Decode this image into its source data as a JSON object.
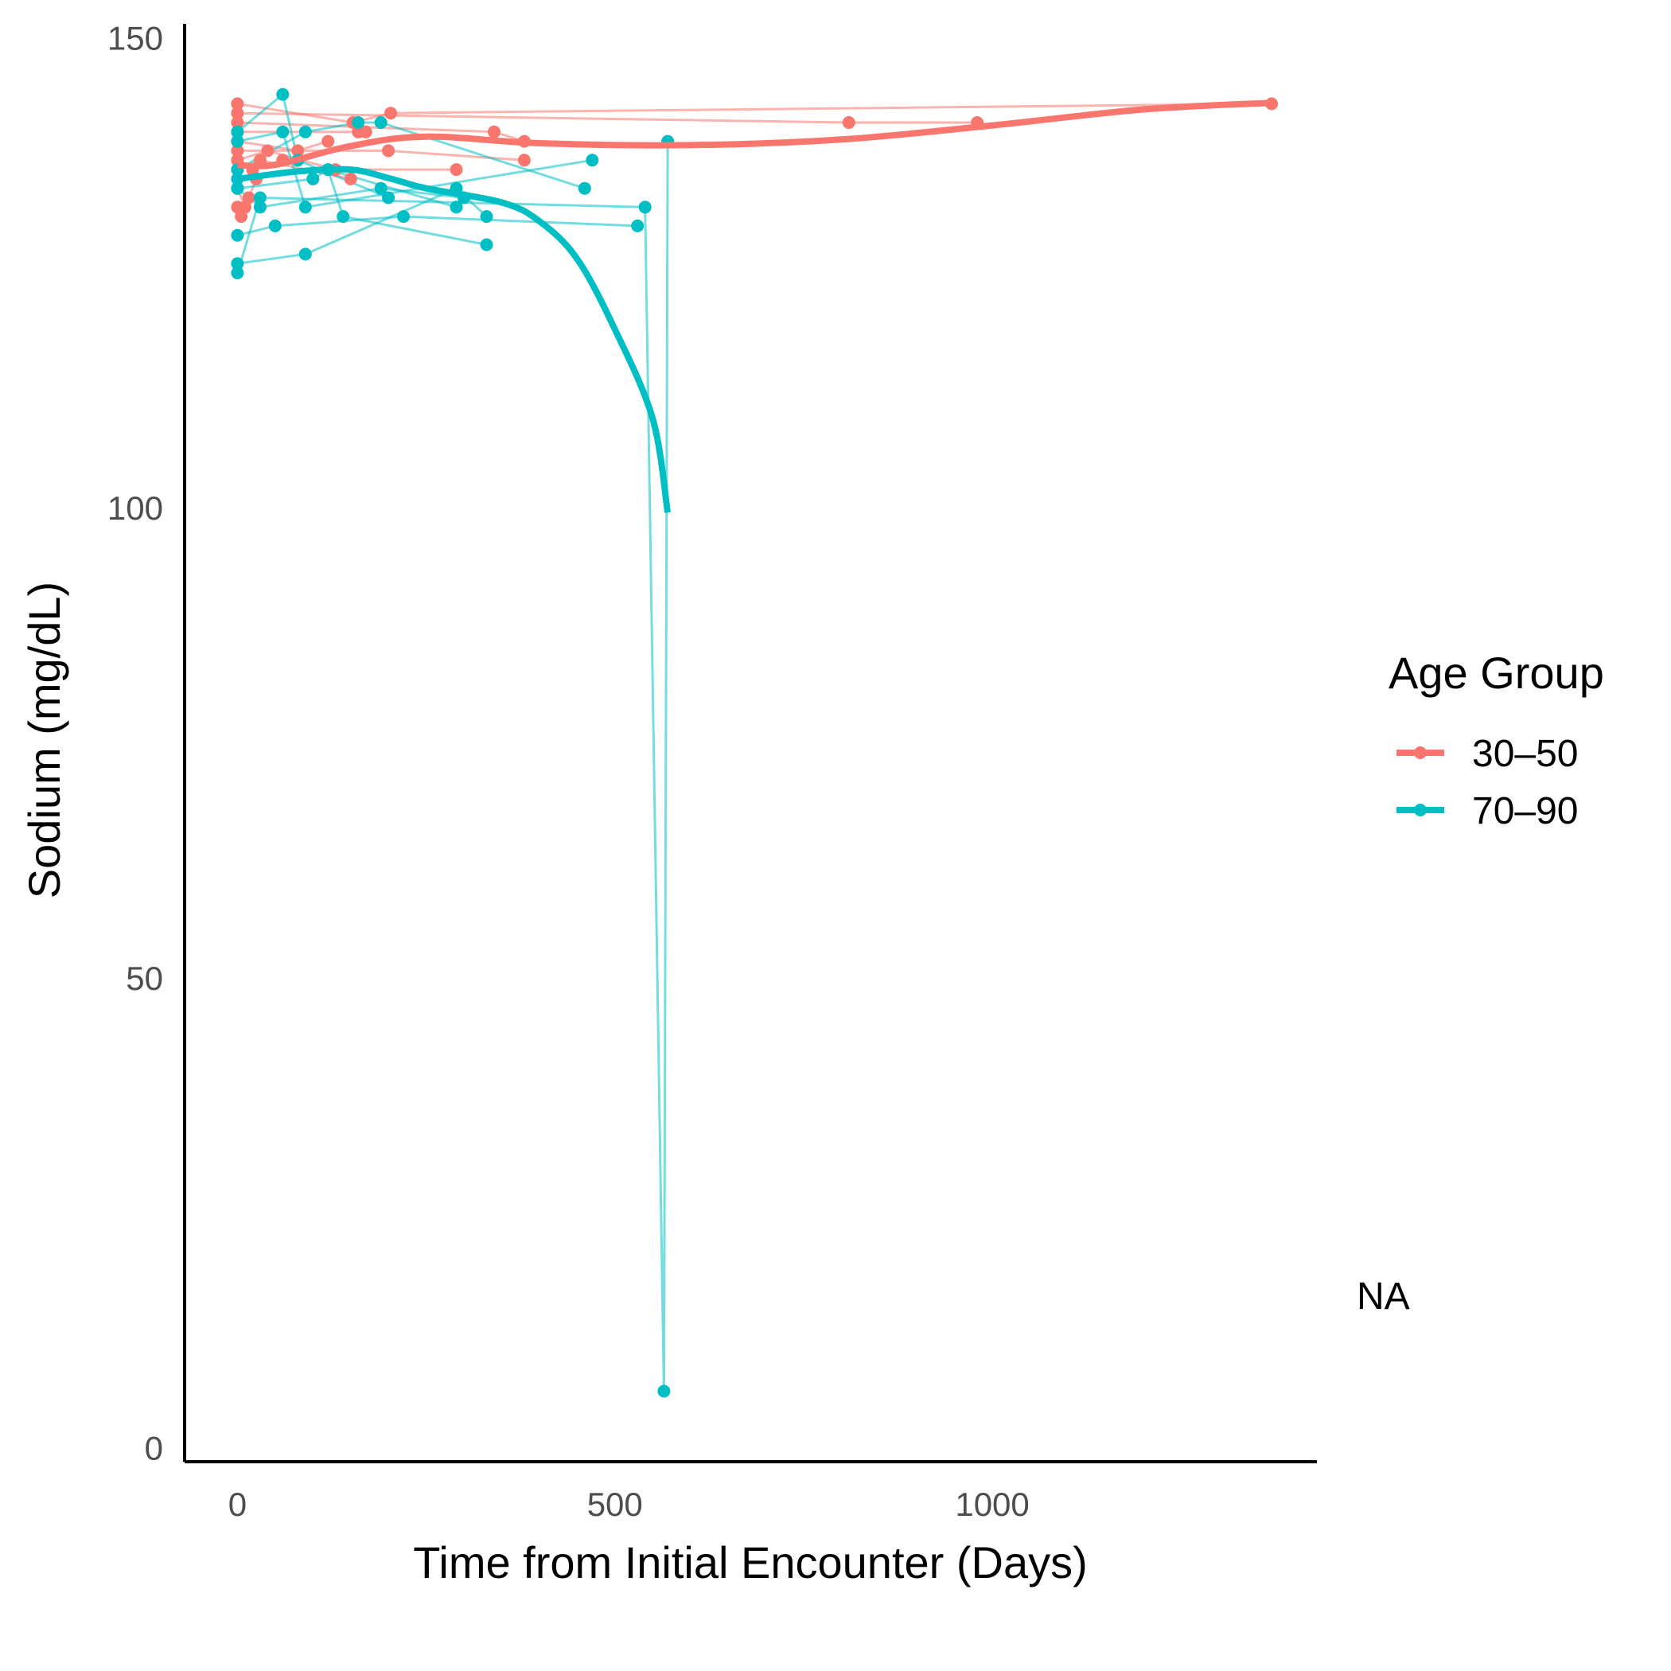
{
  "chart_data": {
    "type": "line",
    "title": "",
    "xlabel": "Time from Initial Encounter (Days)",
    "ylabel": "Sodium (mg/dL)",
    "xlim": [
      -70,
      1430
    ],
    "ylim": [
      -1.5,
      151.5
    ],
    "x_ticks": [
      0,
      500,
      1000
    ],
    "y_ticks": [
      0,
      50,
      100,
      150
    ],
    "x_tick_labels": [
      "0",
      "500",
      "1000"
    ],
    "y_tick_labels": [
      "0",
      "50",
      "100",
      "150"
    ],
    "grid": false,
    "legend": {
      "title": "Age Group",
      "position": "right",
      "entries": [
        "30–50",
        "70–90"
      ]
    },
    "na_label": "NA",
    "series": [
      {
        "name": "30–50",
        "color": "#F8766D",
        "trajectories": [
          [
            [
              0,
              143
            ],
            [
              153,
              141
            ],
            [
              203,
              142
            ],
            [
              1370,
              143
            ]
          ],
          [
            [
              0,
              142
            ],
            [
              810,
              141
            ],
            [
              980,
              141
            ]
          ],
          [
            [
              0,
              141
            ],
            [
              340,
              140
            ],
            [
              380,
              139
            ]
          ],
          [
            [
              0,
              140
            ],
            [
              160,
              140
            ],
            [
              170,
              140
            ]
          ],
          [
            [
              0,
              139
            ],
            [
              80,
              138
            ],
            [
              120,
              139
            ]
          ],
          [
            [
              0,
              138
            ],
            [
              200,
              138
            ],
            [
              380,
              137
            ]
          ],
          [
            [
              0,
              137
            ],
            [
              40,
              138
            ],
            [
              130,
              136
            ],
            [
              290,
              136
            ]
          ],
          [
            [
              0,
              137
            ],
            [
              20,
              136
            ],
            [
              60,
              137
            ]
          ],
          [
            [
              0,
              136
            ],
            [
              30,
              137
            ],
            [
              150,
              135
            ]
          ],
          [
            [
              0,
              134
            ],
            [
              10,
              132
            ],
            [
              25,
              135
            ]
          ],
          [
            [
              0,
              132
            ],
            [
              5,
              131
            ],
            [
              15,
              133
            ]
          ]
        ],
        "smooth": [
          [
            0,
            136.5
          ],
          [
            50,
            136.5
          ],
          [
            150,
            138.5
          ],
          [
            250,
            139.5
          ],
          [
            400,
            138.8
          ],
          [
            600,
            138.6
          ],
          [
            800,
            139.2
          ],
          [
            1000,
            140.7
          ],
          [
            1200,
            142.4
          ],
          [
            1370,
            143.1
          ]
        ]
      },
      {
        "name": "70–90",
        "color": "#00BFC4",
        "trajectories": [
          [
            [
              0,
              140
            ],
            [
              60,
              144
            ],
            [
              80,
              137
            ],
            [
              200,
              133
            ]
          ],
          [
            [
              0,
              139
            ],
            [
              60,
              140
            ],
            [
              90,
              132
            ],
            [
              470,
              137
            ]
          ],
          [
            [
              0,
              136
            ],
            [
              90,
              140
            ],
            [
              160,
              141
            ],
            [
              190,
              141
            ],
            [
              460,
              134
            ]
          ],
          [
            [
              0,
              135
            ],
            [
              120,
              136
            ],
            [
              140,
              131
            ],
            [
              330,
              128
            ]
          ],
          [
            [
              0,
              134
            ],
            [
              30,
              132
            ],
            [
              190,
              134
            ],
            [
              300,
              133
            ]
          ],
          [
            [
              0,
              129
            ],
            [
              50,
              130
            ],
            [
              220,
              131
            ],
            [
              530,
              130
            ]
          ],
          [
            [
              0,
              126
            ],
            [
              90,
              127
            ],
            [
              290,
              134
            ],
            [
              330,
              131
            ]
          ],
          [
            [
              0,
              125
            ],
            [
              30,
              133
            ],
            [
              540,
              132
            ],
            [
              565,
              6
            ],
            [
              570,
              139
            ]
          ],
          [
            [
              0,
              134
            ],
            [
              100,
              135
            ],
            [
              120,
              136
            ],
            [
              290,
              132
            ]
          ]
        ],
        "smooth": [
          [
            0,
            135
          ],
          [
            80,
            135.8
          ],
          [
            150,
            136
          ],
          [
            200,
            135.1
          ],
          [
            250,
            134
          ],
          [
            350,
            132.5
          ],
          [
            400,
            130.5
          ],
          [
            450,
            126.5
          ],
          [
            500,
            119
          ],
          [
            550,
            109.5
          ],
          [
            570,
            99.5
          ]
        ]
      }
    ]
  }
}
